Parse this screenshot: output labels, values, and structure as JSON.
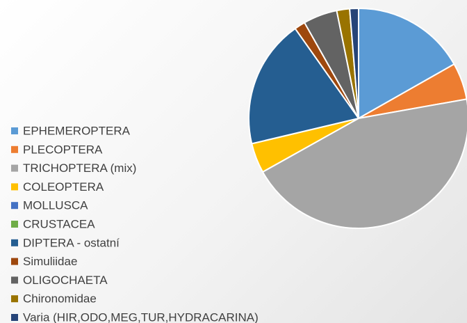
{
  "chart_data": {
    "type": "pie",
    "categories": [
      "EPHEMEROPTERA",
      "PLECOPTERA",
      "TRICHOPTERA (mix)",
      "COLEOPTERA",
      "MOLLUSCA",
      "CRUSTACEA",
      "DIPTERA - ostatní",
      "Simuliidae",
      "OLIGOCHAETA",
      "Chironomidae",
      "Varia (HIR,ODO,MEG,TUR,HYDRACARINA)"
    ],
    "values": [
      16.8,
      5.4,
      44.7,
      4.4,
      0,
      0,
      18.9,
      1.6,
      5,
      1.9,
      1.3
    ],
    "colors": [
      "#5b9bd5",
      "#ed7d31",
      "#a5a5a5",
      "#ffc000",
      "#4472c4",
      "#70ad47",
      "#255e91",
      "#9e480e",
      "#636363",
      "#997300",
      "#264478"
    ],
    "legend": "left"
  }
}
